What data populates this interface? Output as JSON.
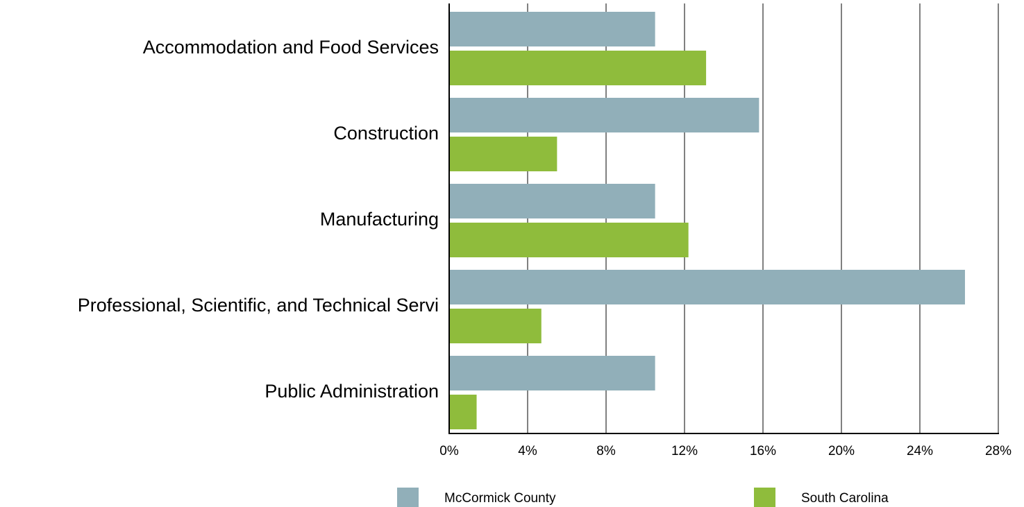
{
  "chart_data": {
    "type": "bar",
    "orientation": "horizontal",
    "categories": [
      "Accommodation and Food Services",
      "Construction",
      "Manufacturing",
      "Professional, Scientific, and Technical Servi",
      "Public Administration"
    ],
    "series": [
      {
        "name": "McCormick County",
        "color": "#91afb9",
        "values": [
          10.5,
          15.8,
          10.5,
          26.3,
          10.5
        ]
      },
      {
        "name": "South Carolina",
        "color": "#8fbc3c",
        "values": [
          13.1,
          5.5,
          12.2,
          4.7,
          1.4
        ]
      }
    ],
    "xlim": [
      0,
      28
    ],
    "xticks": [
      "0%",
      "4%",
      "8%",
      "12%",
      "16%",
      "20%",
      "24%",
      "28%"
    ],
    "grid": true,
    "legend_position": "bottom",
    "title": "",
    "xlabel": "",
    "ylabel": ""
  }
}
